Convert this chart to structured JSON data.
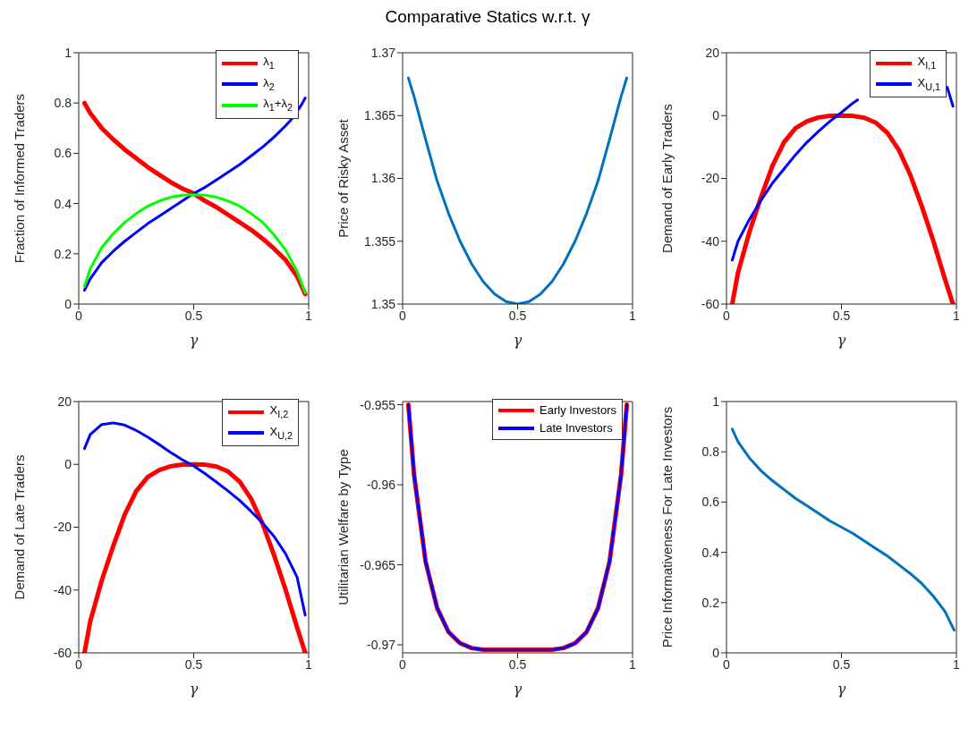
{
  "chart_data": [
    {
      "type": "line",
      "xlabel": "γ",
      "ylabel": "Fraction of Informed Traders",
      "xlim": [
        0,
        1
      ],
      "xticks": [
        0,
        0.5,
        1
      ],
      "ylim": [
        0,
        1
      ],
      "yticks": [
        0,
        0.2,
        0.4,
        0.6,
        0.8,
        1
      ],
      "grid": false,
      "legend": "top right",
      "marker": "none",
      "x": [
        0.025,
        0.05,
        0.1,
        0.15,
        0.2,
        0.25,
        0.3,
        0.35,
        0.4,
        0.45,
        0.5,
        0.55,
        0.6,
        0.65,
        0.7,
        0.75,
        0.8,
        0.85,
        0.9,
        0.95,
        0.985
      ],
      "series": [
        {
          "name": "λ$_{1}$",
          "color": "#ff0000",
          "values": [
            0.8,
            0.76,
            0.7,
            0.655,
            0.615,
            0.58,
            0.545,
            0.515,
            0.485,
            0.46,
            0.44,
            0.41,
            0.385,
            0.355,
            0.325,
            0.295,
            0.26,
            0.22,
            0.175,
            0.11,
            0.04
          ]
        },
        {
          "name": "λ$_{2}$",
          "color": "#0000ff",
          "x": [
            0.025,
            0.05,
            0.1,
            0.15,
            0.2,
            0.25,
            0.3,
            0.35,
            0.4,
            0.45,
            0.5,
            0.55,
            0.6,
            0.65,
            0.7,
            0.75,
            0.8,
            0.85,
            0.9,
            0.93,
            0.97,
            0.985
          ],
          "values": [
            0.055,
            0.1,
            0.165,
            0.21,
            0.25,
            0.285,
            0.32,
            0.35,
            0.38,
            0.41,
            0.44,
            0.465,
            0.495,
            0.525,
            0.555,
            0.59,
            0.625,
            0.665,
            0.71,
            0.74,
            0.795,
            0.82
          ]
        },
        {
          "name": "λ$_{1}$+λ$_{2}$",
          "color": "#00ff00",
          "values": [
            0.07,
            0.14,
            0.225,
            0.28,
            0.325,
            0.36,
            0.39,
            0.41,
            0.425,
            0.433,
            0.435,
            0.433,
            0.425,
            0.41,
            0.39,
            0.36,
            0.325,
            0.275,
            0.215,
            0.13,
            0.045
          ]
        }
      ]
    },
    {
      "type": "line",
      "title": "Comparative Statics w.r.t.  γ",
      "xlabel": "γ",
      "ylabel": "Price of Risky Asset",
      "xlim": [
        0,
        1
      ],
      "xticks": [
        0,
        0.5,
        1
      ],
      "ylim": [
        1.35,
        1.37
      ],
      "yticks": [
        1.35,
        1.355,
        1.36,
        1.365,
        1.37
      ],
      "grid": false,
      "legend": false,
      "marker": "none",
      "x": [
        0.025,
        0.05,
        0.1,
        0.15,
        0.2,
        0.25,
        0.3,
        0.35,
        0.4,
        0.45,
        0.5,
        0.55,
        0.6,
        0.65,
        0.7,
        0.75,
        0.8,
        0.85,
        0.9,
        0.95,
        0.975
      ],
      "series": [
        {
          "color": "#0072bd",
          "values": [
            1.368,
            1.3665,
            1.3631,
            1.3598,
            1.3572,
            1.355,
            1.3532,
            1.3518,
            1.3508,
            1.3502,
            1.35,
            1.3502,
            1.3508,
            1.3518,
            1.3532,
            1.355,
            1.3572,
            1.3598,
            1.3631,
            1.3665,
            1.368
          ]
        }
      ]
    },
    {
      "type": "line",
      "xlabel": "γ",
      "ylabel": "Demand of Early Traders",
      "xlim": [
        0,
        1
      ],
      "xticks": [
        0,
        0.5,
        1
      ],
      "ylim": [
        -60,
        20
      ],
      "yticks": [
        -60,
        -40,
        -20,
        0,
        20
      ],
      "grid": false,
      "legend": "top right",
      "marker": "none",
      "series": [
        {
          "name": "X$_{I,1}$",
          "color": "#ff0000",
          "x": [
            0.025,
            0.05,
            0.1,
            0.15,
            0.2,
            0.25,
            0.3,
            0.35,
            0.4,
            0.45,
            0.5,
            0.55,
            0.6,
            0.65,
            0.7,
            0.75,
            0.8,
            0.85,
            0.9,
            0.95,
            0.985
          ],
          "values": [
            -60,
            -50,
            -37,
            -26,
            -16,
            -8.5,
            -4,
            -1.8,
            -0.6,
            -0.1,
            0,
            -0.1,
            -0.7,
            -2.3,
            -5.5,
            -11,
            -19,
            -29,
            -40,
            -52,
            -60
          ]
        },
        {
          "name": "X$_{U,1}$",
          "color": "#0000ff",
          "x": [
            0.025,
            0.05,
            0.1,
            0.15,
            0.2,
            0.25,
            0.3,
            0.35,
            0.4,
            0.45,
            0.5,
            0.55,
            0.57,
            0.75,
            0.96,
            0.985
          ],
          "values": [
            -46,
            -40,
            -33,
            -27,
            -21.5,
            -17,
            -12.5,
            -8.5,
            -5,
            -1.8,
            1,
            4,
            5,
            null,
            9,
            3
          ]
        }
      ]
    },
    {
      "type": "line",
      "xlabel": "γ",
      "ylabel": "Demand of Late Traders",
      "xlim": [
        0,
        1
      ],
      "xticks": [
        0,
        0.5,
        1
      ],
      "ylim": [
        -60,
        20
      ],
      "yticks": [
        -60,
        -40,
        -20,
        0,
        20
      ],
      "grid": false,
      "legend": "top right",
      "marker": "none",
      "x": [
        0.025,
        0.05,
        0.1,
        0.15,
        0.2,
        0.25,
        0.3,
        0.35,
        0.4,
        0.45,
        0.5,
        0.55,
        0.6,
        0.65,
        0.7,
        0.75,
        0.8,
        0.85,
        0.9,
        0.95,
        0.985
      ],
      "series": [
        {
          "name": "X$_{I,2}$",
          "color": "#ff0000",
          "values": [
            -60,
            -50,
            -37,
            -26,
            -16,
            -8.5,
            -4,
            -1.8,
            -0.6,
            -0.1,
            0,
            -0.1,
            -0.7,
            -2.3,
            -5.5,
            -11,
            -19,
            -29,
            -40,
            -52,
            -60
          ]
        },
        {
          "name": "X$_{U,2}$",
          "color": "#0000ff",
          "values": [
            5,
            9.5,
            12.7,
            13.2,
            12.5,
            10.8,
            8.7,
            6.3,
            3.8,
            1.5,
            -0.5,
            -3,
            -5.7,
            -8.5,
            -11.5,
            -15,
            -18.7,
            -23,
            -28.5,
            -36,
            -48
          ]
        }
      ]
    },
    {
      "type": "line",
      "xlabel": "γ",
      "ylabel": "Utilitarian Welfare by Type",
      "xlim": [
        0,
        1
      ],
      "xticks": [
        0,
        0.5,
        1
      ],
      "ylim": [
        -0.9705,
        -0.9548
      ],
      "yticks": [
        -0.97,
        -0.965,
        -0.96,
        -0.955
      ],
      "grid": false,
      "legend": "top right",
      "marker": "none",
      "x": [
        0.025,
        0.05,
        0.1,
        0.15,
        0.2,
        0.25,
        0.3,
        0.35,
        0.4,
        0.45,
        0.5,
        0.55,
        0.6,
        0.65,
        0.7,
        0.75,
        0.8,
        0.85,
        0.9,
        0.95,
        0.975
      ],
      "series": [
        {
          "name": "Early Investors",
          "color": "#ff0000",
          "values": [
            -0.955,
            -0.9594,
            -0.9648,
            -0.9677,
            -0.9692,
            -0.9699,
            -0.9702,
            -0.9703,
            -0.9703,
            -0.9703,
            -0.9703,
            -0.9703,
            -0.9703,
            -0.9703,
            -0.9702,
            -0.9699,
            -0.9692,
            -0.9677,
            -0.9648,
            -0.9594,
            -0.955
          ]
        },
        {
          "name": "Late Investors",
          "color": "#0000ff",
          "values": [
            -0.955,
            -0.9594,
            -0.9648,
            -0.9677,
            -0.9692,
            -0.9699,
            -0.9702,
            -0.9703,
            -0.9703,
            -0.9703,
            -0.9703,
            -0.9703,
            -0.9703,
            -0.9703,
            -0.9702,
            -0.9699,
            -0.9692,
            -0.9677,
            -0.9648,
            -0.9594,
            -0.955
          ]
        }
      ]
    },
    {
      "type": "line",
      "xlabel": "γ",
      "ylabel": "Price Informativeness For Late Investors",
      "xlim": [
        0,
        1
      ],
      "xticks": [
        0,
        0.5,
        1
      ],
      "ylim": [
        0,
        1
      ],
      "yticks": [
        0,
        0.2,
        0.4,
        0.6,
        0.8,
        1
      ],
      "grid": false,
      "legend": false,
      "marker": "none",
      "x": [
        0.025,
        0.05,
        0.1,
        0.15,
        0.2,
        0.25,
        0.3,
        0.35,
        0.4,
        0.45,
        0.5,
        0.55,
        0.6,
        0.65,
        0.7,
        0.75,
        0.8,
        0.85,
        0.9,
        0.95,
        0.99
      ],
      "series": [
        {
          "color": "#0072bd",
          "values": [
            0.89,
            0.84,
            0.775,
            0.725,
            0.685,
            0.65,
            0.615,
            0.585,
            0.555,
            0.525,
            0.5,
            0.475,
            0.445,
            0.415,
            0.385,
            0.35,
            0.315,
            0.275,
            0.225,
            0.165,
            0.09
          ]
        }
      ]
    }
  ]
}
